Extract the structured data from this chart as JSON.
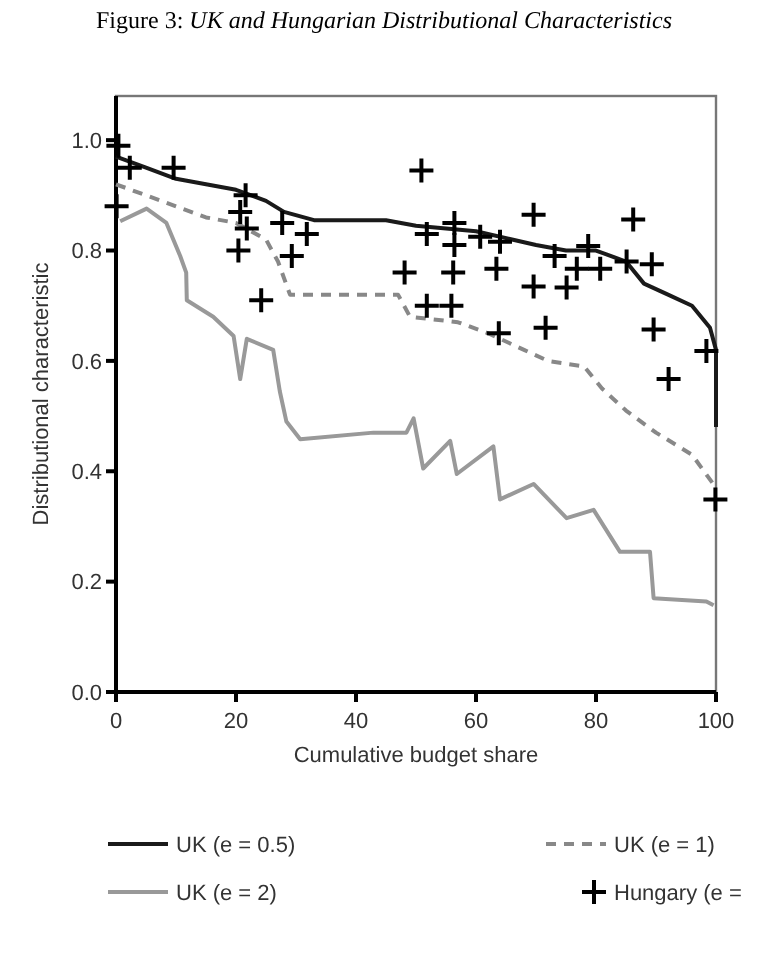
{
  "chart_data": {
    "type": "line",
    "title": "Figure 3: UK and Hungarian Distributional Characteristics",
    "xlabel": "Cumulative budget share",
    "ylabel": "Distributional characteristic",
    "xlim": [
      0,
      100
    ],
    "ylim": [
      0,
      1.08
    ],
    "xticks": [
      0,
      20,
      40,
      60,
      80,
      100
    ],
    "yticks": [
      {
        "value": 0,
        "label": "0.0"
      },
      {
        "value": 0.2,
        "label": "0.2"
      },
      {
        "value": 0.4,
        "label": "0.4"
      },
      {
        "value": 0.6,
        "label": "0.6"
      },
      {
        "value": 0.8,
        "label": "0.8"
      },
      {
        "value": 1,
        "label": "1.0"
      }
    ],
    "grid": false,
    "legend": "bottom",
    "marker": "none",
    "series": [
      {
        "name": "UK (e = 0.5)",
        "color": "#1a1a1a",
        "line_style": "solid",
        "x": [
          0,
          5,
          10,
          15,
          20,
          25,
          28,
          33,
          45,
          50,
          60,
          66,
          70,
          75,
          80,
          85,
          88,
          92,
          96,
          99,
          100,
          100
        ],
        "values": [
          0.97,
          0.95,
          0.93,
          0.92,
          0.91,
          0.89,
          0.87,
          0.855,
          0.855,
          0.845,
          0.835,
          0.82,
          0.81,
          0.8,
          0.8,
          0.78,
          0.74,
          0.72,
          0.7,
          0.66,
          0.62,
          0.48
        ]
      },
      {
        "name": "UK (e = 1)",
        "color": "#888888",
        "line_style": "dashed",
        "x": [
          0,
          5,
          10,
          15,
          20,
          25,
          27,
          29,
          47,
          49,
          57,
          62,
          68,
          72,
          78,
          81,
          85,
          90,
          96,
          100
        ],
        "values": [
          0.92,
          0.9,
          0.88,
          0.86,
          0.85,
          0.82,
          0.78,
          0.72,
          0.72,
          0.68,
          0.67,
          0.65,
          0.62,
          0.6,
          0.59,
          0.55,
          0.51,
          0.47,
          0.43,
          0.37
        ]
      },
      {
        "name": "UK (e = 2)",
        "color": "#999999",
        "line_style": "solid",
        "x": [
          0.7,
          5.1,
          8.4,
          10.7,
          11.7,
          11.8,
          16.2,
          19.6,
          20.7,
          21.8,
          26.2,
          27.3,
          28.4,
          30.7,
          42.9,
          48.4,
          49.6,
          51.2,
          55.7,
          56.8,
          62.9,
          64,
          69.6,
          75.1,
          79.6,
          84,
          89,
          89.6,
          98.4,
          99.6
        ],
        "values": [
          0.853,
          0.876,
          0.85,
          0.79,
          0.76,
          0.71,
          0.68,
          0.645,
          0.567,
          0.64,
          0.62,
          0.545,
          0.49,
          0.458,
          0.47,
          0.47,
          0.496,
          0.405,
          0.455,
          0.395,
          0.445,
          0.349,
          0.377,
          0.315,
          0.33,
          0.254,
          0.254,
          0.17,
          0.164,
          0.157
        ]
      },
      {
        "name": "Hungary (e =",
        "type": "scatter",
        "marker": "cross",
        "color": "#000000",
        "x": [
          0.4,
          2.3,
          0.1,
          9.6,
          21.6,
          20.7,
          21.8,
          20.4,
          27.7,
          31.8,
          29.3,
          24.2,
          50.9,
          51.8,
          48.1,
          51.8,
          55.9,
          56.4,
          56.4,
          56.2,
          64,
          60.7,
          63.4,
          63.8,
          69.6,
          69.6,
          71.6,
          73.1,
          75.1,
          76.8,
          78.7,
          80.7,
          85.1,
          89.3,
          86.2,
          89.6,
          92.1,
          98.4,
          99.9
        ],
        "values": [
          0.99,
          0.95,
          0.88,
          0.95,
          0.9,
          0.87,
          0.84,
          0.8,
          0.85,
          0.83,
          0.79,
          0.71,
          0.945,
          0.83,
          0.76,
          0.7,
          0.7,
          0.85,
          0.81,
          0.76,
          0.816,
          0.825,
          0.767,
          0.65,
          0.865,
          0.735,
          0.66,
          0.79,
          0.733,
          0.767,
          0.808,
          0.767,
          0.78,
          0.775,
          0.856,
          0.657,
          0.567,
          0.618,
          0.349
        ]
      }
    ]
  }
}
